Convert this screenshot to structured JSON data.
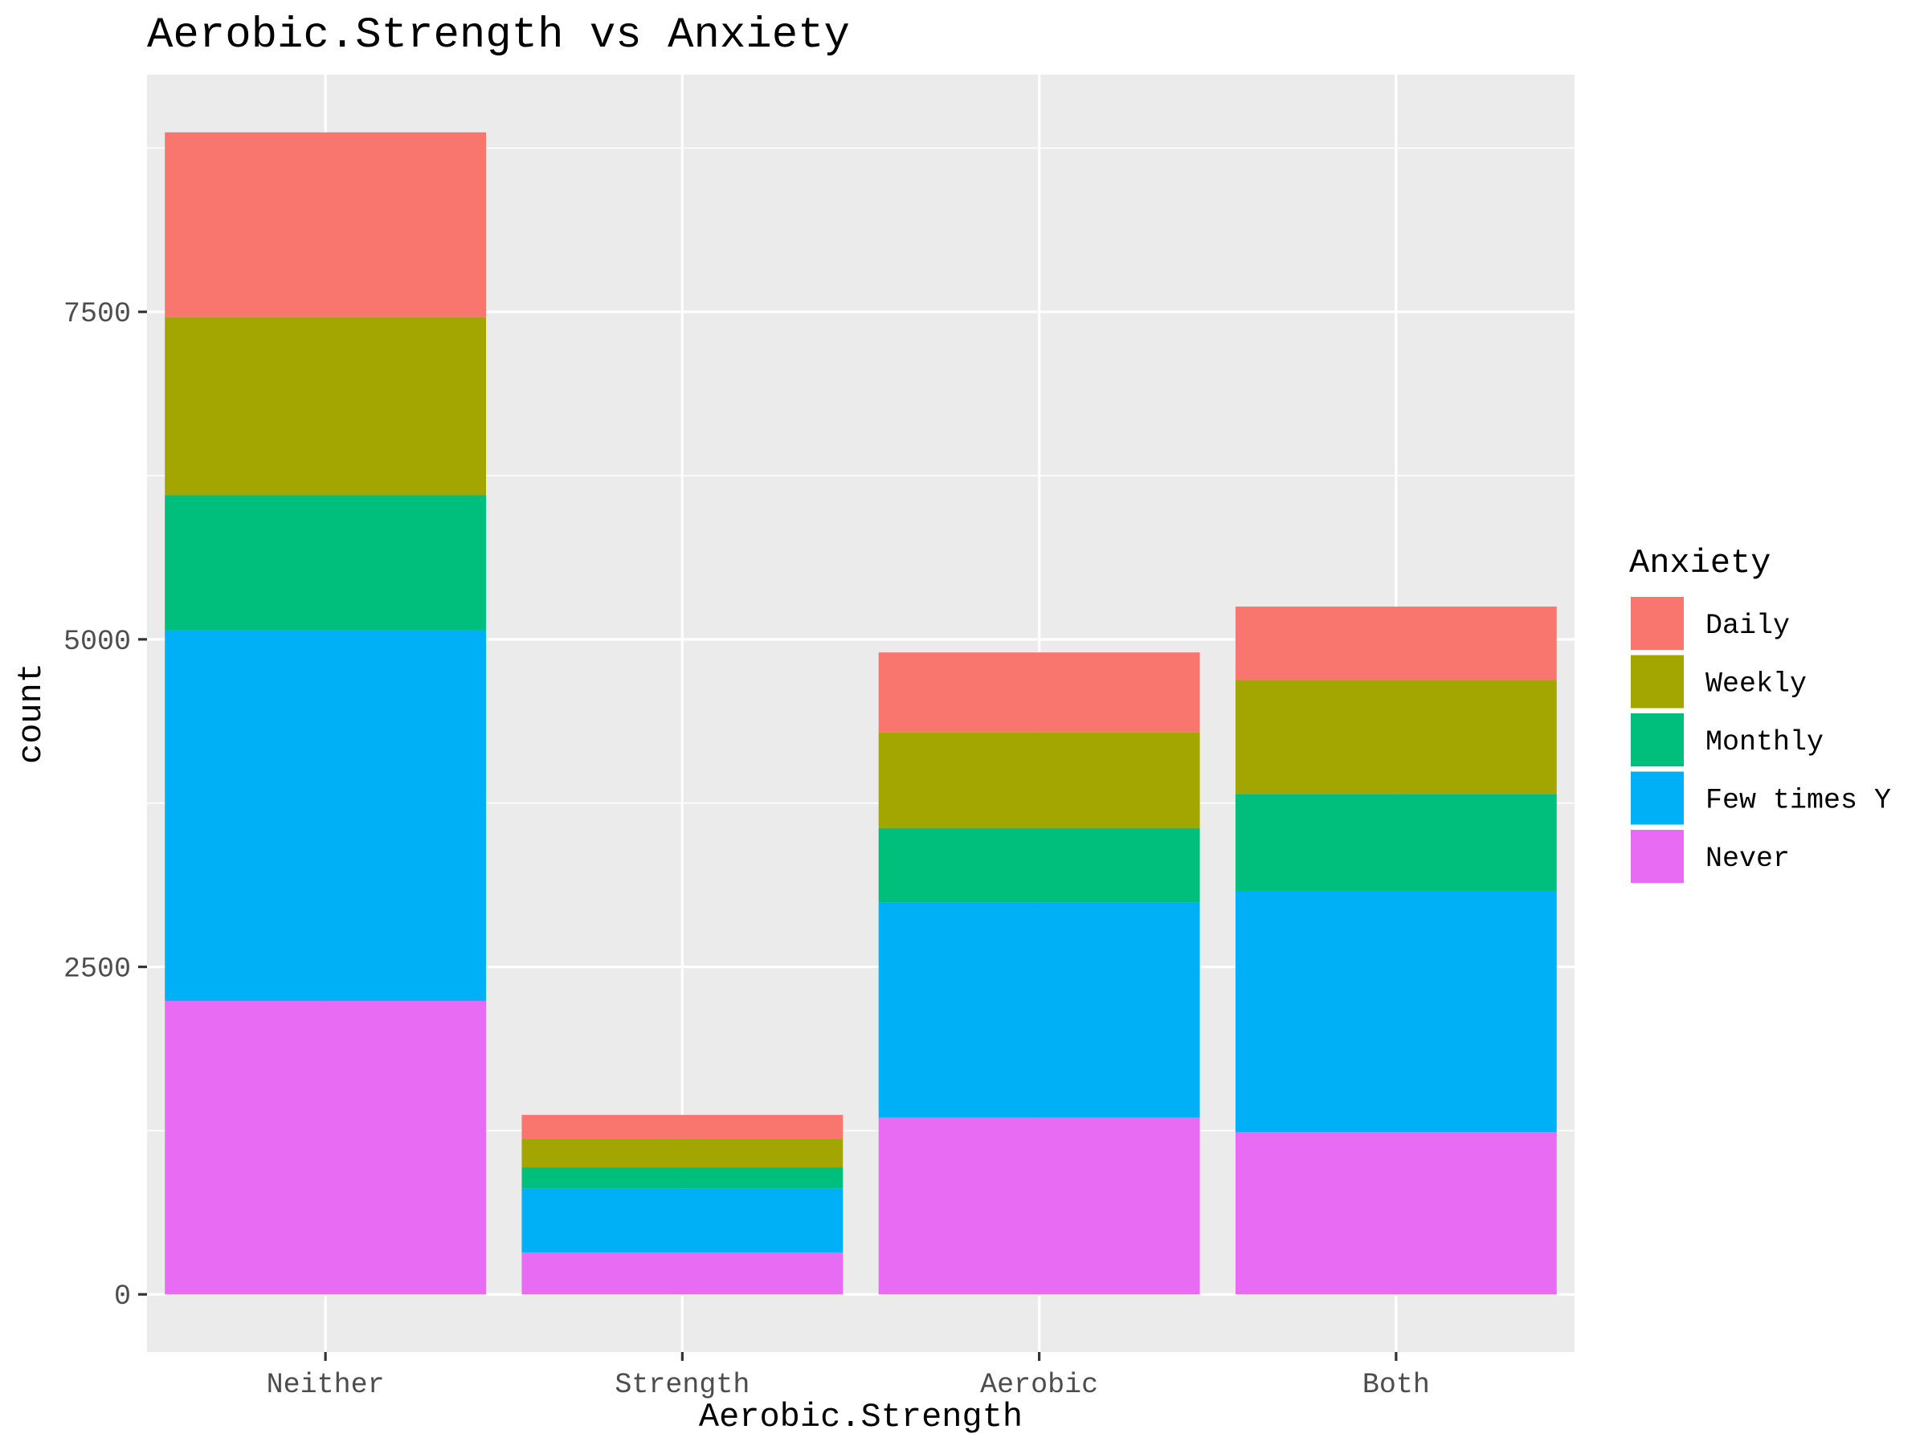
{
  "chart_data": {
    "type": "bar",
    "stacked": true,
    "title": "Aerobic.Strength vs Anxiety",
    "xlabel": "Aerobic.Strength",
    "ylabel": "count",
    "categories": [
      "Neither",
      "Strength",
      "Aerobic",
      "Both"
    ],
    "yticks": [
      0,
      2500,
      5000,
      7500
    ],
    "ylim": [
      -440,
      9310
    ],
    "grid": true,
    "legend": {
      "title": "Anxiety",
      "placement": "right"
    },
    "series": [
      {
        "name": "Never",
        "color": "#e76bf3",
        "values": [
          2240,
          320,
          1350,
          1240
        ]
      },
      {
        "name": "Few times Y",
        "color": "#00b0f6",
        "values": [
          2830,
          490,
          1640,
          1840
        ]
      },
      {
        "name": "Monthly",
        "color": "#00bf7d",
        "values": [
          1030,
          160,
          570,
          740
        ]
      },
      {
        "name": "Weekly",
        "color": "#a3a500",
        "values": [
          1360,
          220,
          730,
          870
        ]
      },
      {
        "name": "Daily",
        "color": "#f8766d",
        "values": [
          1410,
          180,
          610,
          560
        ]
      }
    ],
    "legend_order": [
      "Daily",
      "Weekly",
      "Monthly",
      "Few times Y",
      "Never"
    ]
  }
}
